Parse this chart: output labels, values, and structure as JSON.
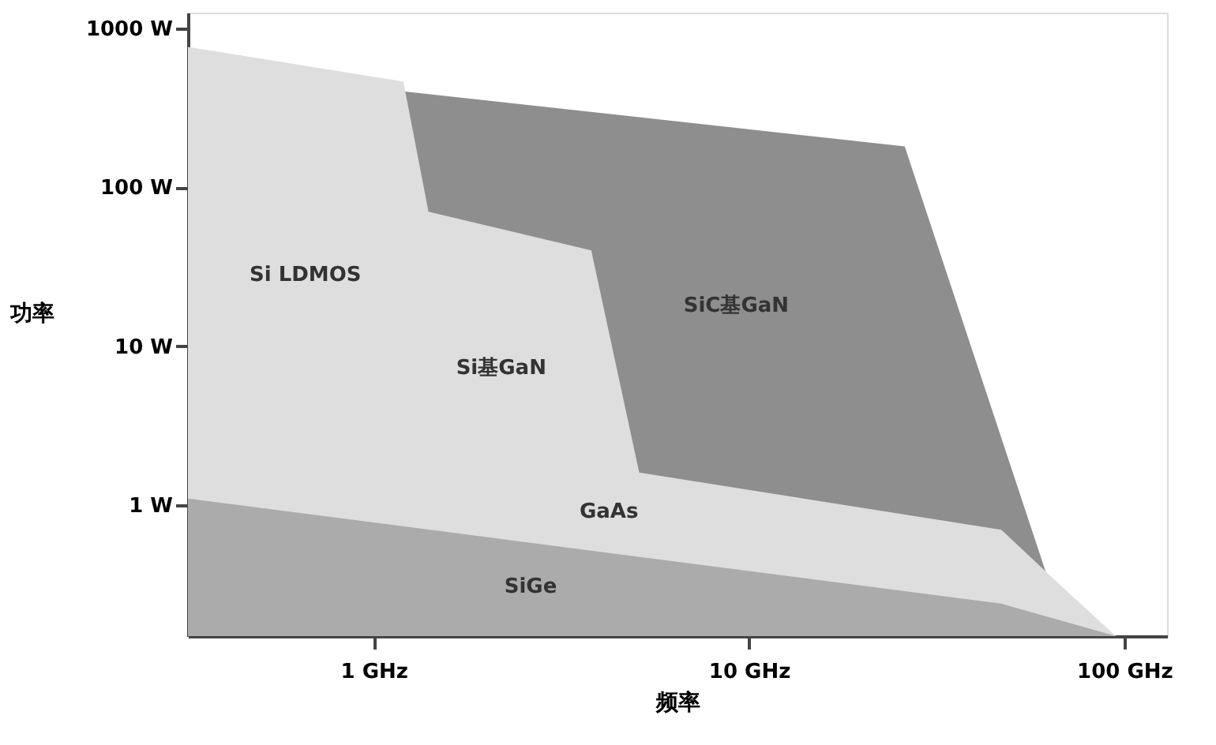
{
  "chart_data": {
    "type": "area",
    "xlabel": "频率",
    "ylabel": "功率",
    "log": "xy",
    "grid": false,
    "xlim": [
      0.32,
      130
    ],
    "ylim": [
      0.15,
      1250
    ],
    "xticks": [
      {
        "value": 1,
        "label": "1 GHz"
      },
      {
        "value": 10,
        "label": "10 GHz"
      },
      {
        "value": 100,
        "label": "100 GHz"
      }
    ],
    "yticks": [
      {
        "value": 1,
        "label": "1 W"
      },
      {
        "value": 10,
        "label": "10 W"
      },
      {
        "value": 100,
        "label": "100 W"
      },
      {
        "value": 1000,
        "label": "1000 W"
      }
    ],
    "series": [
      {
        "color": "#8e8e8e",
        "x": [
          1.2,
          26,
          62,
          64
        ],
        "values": [
          400,
          180,
          0.37,
          0.15
        ]
      },
      {
        "color": "#dedede",
        "x": [
          0.32,
          1.2,
          1.4,
          3.8,
          5.1,
          47,
          66,
          95
        ],
        "values": [
          760,
          460,
          70,
          40,
          1.6,
          0.7,
          0.33,
          0.15
        ]
      },
      {
        "color": "#ababab",
        "x": [
          0.32,
          47,
          95
        ],
        "values": [
          1.1,
          0.24,
          0.15
        ]
      }
    ],
    "annotations": [
      "Si LDMOS",
      "Si基GaN",
      "SiC基GaN",
      "GaAs",
      "SiGe"
    ]
  }
}
